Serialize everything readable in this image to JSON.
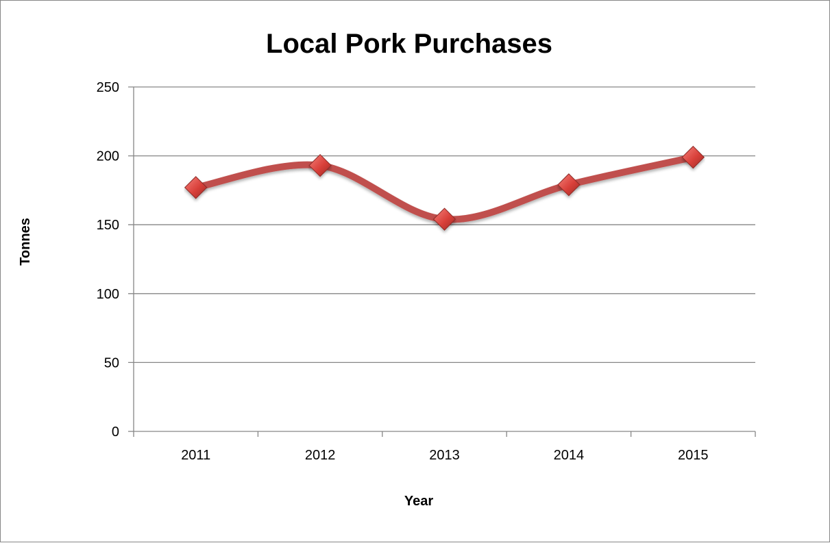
{
  "chart_data": {
    "type": "line",
    "title": "Local Pork Purchases",
    "xlabel": "Year",
    "ylabel": "Tonnes",
    "categories": [
      "2011",
      "2012",
      "2013",
      "2014",
      "2015"
    ],
    "series": [
      {
        "values": [
          177,
          193,
          154,
          179,
          199
        ]
      }
    ],
    "ylim": [
      0,
      250
    ],
    "yticks": [
      0,
      50,
      100,
      150,
      200,
      250
    ],
    "grid": true,
    "legend": "none",
    "smooth": true,
    "line_color": "#C0504D",
    "marker": "diamond",
    "marker_color": "#D9403A"
  }
}
